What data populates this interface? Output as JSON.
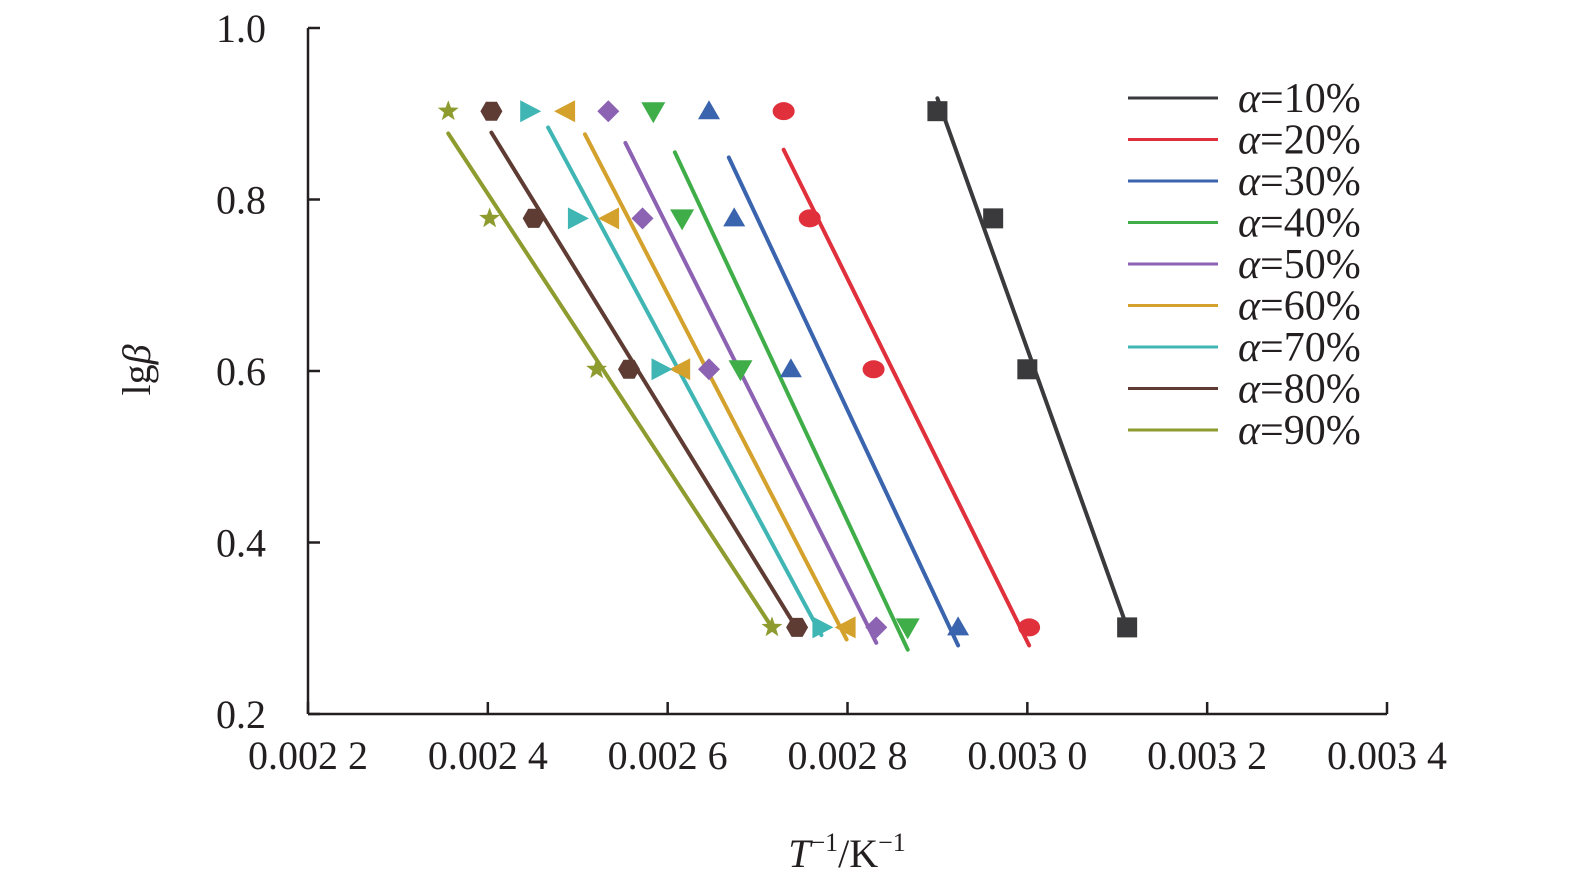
{
  "chart_data": {
    "type": "scatter",
    "ylabel": {
      "main": "lg",
      "var": "β"
    },
    "xlabel": {
      "var": "T",
      "sup1": "−1",
      "unit": "/K",
      "sup2": "−1"
    },
    "xlim": [
      0.0022,
      0.0034
    ],
    "ylim": [
      0.2,
      1.0
    ],
    "xticks": [
      0.0022,
      0.0024,
      0.0026,
      0.0028,
      0.003,
      0.0032,
      0.0034
    ],
    "xtick_labels": [
      "0.002 2",
      "0.002 4",
      "0.002 6",
      "0.002 8",
      "0.003 0",
      "0.003 2",
      "0.003 4"
    ],
    "yticks": [
      0.2,
      0.4,
      0.6,
      0.8,
      1.0
    ],
    "ytick_labels": [
      "0.2",
      "0.4",
      "0.6",
      "0.8",
      "1.0"
    ],
    "y_values": [
      0.903,
      0.778,
      0.602,
      0.301
    ],
    "grid": false,
    "legend_position": "top-right",
    "series": [
      {
        "name": "α=10%",
        "label_var": "α",
        "label_rest": "=10%",
        "color": "#3a3a3c",
        "marker": "square",
        "x": [
          0.0029,
          0.002962,
          0.003,
          0.003111
        ],
        "fit_x": [
          0.0029,
          0.003111
        ],
        "fit_y": [
          0.918,
          0.301
        ]
      },
      {
        "name": "α=20%",
        "label_var": "α",
        "label_rest": "=20%",
        "color": "#e0303c",
        "marker": "circle",
        "x": [
          0.002729,
          0.002758,
          0.002829,
          0.003002
        ],
        "fit_x": [
          0.002729,
          0.003002
        ],
        "fit_y": [
          0.858,
          0.28
        ]
      },
      {
        "name": "α=30%",
        "label_var": "α",
        "label_rest": "=30%",
        "color": "#3a64ad",
        "marker": "triangle-up",
        "x": [
          0.002646,
          0.002674,
          0.002737,
          0.002923
        ],
        "fit_x": [
          0.002668,
          0.002923
        ],
        "fit_y": [
          0.849,
          0.28
        ]
      },
      {
        "name": "α=40%",
        "label_var": "α",
        "label_rest": "=40%",
        "color": "#3fae49",
        "marker": "triangle-down",
        "x": [
          0.002584,
          0.002616,
          0.002681,
          0.002867
        ],
        "fit_x": [
          0.002608,
          0.002867
        ],
        "fit_y": [
          0.855,
          0.275
        ]
      },
      {
        "name": "α=50%",
        "label_var": "α",
        "label_rest": "=50%",
        "color": "#8c62b3",
        "marker": "diamond",
        "x": [
          0.002534,
          0.002572,
          0.002646,
          0.002832
        ],
        "fit_x": [
          0.002553,
          0.002832
        ],
        "fit_y": [
          0.866,
          0.283
        ]
      },
      {
        "name": "α=60%",
        "label_var": "α",
        "label_rest": "=60%",
        "color": "#d3a12c",
        "marker": "triangle-left",
        "x": [
          0.002487,
          0.002536,
          0.002615,
          0.002799
        ],
        "fit_x": [
          0.002508,
          0.002799
        ],
        "fit_y": [
          0.876,
          0.287
        ]
      },
      {
        "name": "α=70%",
        "label_var": "α",
        "label_rest": "=70%",
        "color": "#40b6b4",
        "marker": "triangle-right",
        "x": [
          0.002446,
          0.002499,
          0.002592,
          0.002771
        ],
        "fit_x": [
          0.002467,
          0.002771
        ],
        "fit_y": [
          0.884,
          0.292
        ]
      },
      {
        "name": "α=80%",
        "label_var": "α",
        "label_rest": "=80%",
        "color": "#5e3c34",
        "marker": "hexagon",
        "x": [
          0.002404,
          0.002451,
          0.002557,
          0.002744
        ],
        "fit_x": [
          0.002404,
          0.002744
        ],
        "fit_y": [
          0.878,
          0.299
        ]
      },
      {
        "name": "α=90%",
        "label_var": "α",
        "label_rest": "=90%",
        "color": "#8e9b2e",
        "marker": "star",
        "x": [
          0.002356,
          0.002402,
          0.002521,
          0.002716
        ],
        "fit_x": [
          0.002356,
          0.002716
        ],
        "fit_y": [
          0.877,
          0.301
        ]
      }
    ]
  }
}
